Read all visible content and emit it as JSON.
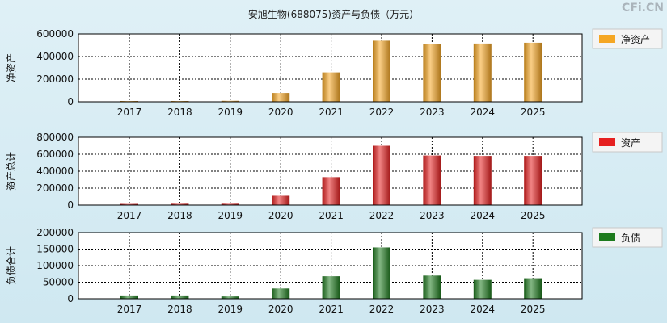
{
  "title": "安旭生物(688075)资产与负债（万元）",
  "watermark": "CFi.CN",
  "chart_data": [
    {
      "type": "bar",
      "ylabel": "净资产",
      "legend": "净资产",
      "color": "#f5a623",
      "categories": [
        "2017",
        "2018",
        "2019",
        "2020",
        "2021",
        "2022",
        "2023",
        "2024",
        "2025"
      ],
      "values": [
        4000,
        6000,
        9000,
        78000,
        260000,
        540000,
        510000,
        515000,
        522000
      ],
      "ylim": [
        0,
        600000
      ],
      "yticks": [
        0,
        200000,
        400000,
        600000
      ],
      "grid": true,
      "legend_position": "right"
    },
    {
      "type": "bar",
      "ylabel": "资产总计",
      "legend": "资产",
      "color": "#e62020",
      "categories": [
        "2017",
        "2018",
        "2019",
        "2020",
        "2021",
        "2022",
        "2023",
        "2024",
        "2025"
      ],
      "values": [
        14000,
        16000,
        16000,
        110000,
        330000,
        700000,
        585000,
        580000,
        580000
      ],
      "ylim": [
        0,
        800000
      ],
      "yticks": [
        0,
        200000,
        400000,
        600000,
        800000
      ],
      "grid": true,
      "legend_position": "right"
    },
    {
      "type": "bar",
      "ylabel": "负债合计",
      "legend": "负债",
      "color": "#1e7b1e",
      "categories": [
        "2017",
        "2018",
        "2019",
        "2020",
        "2021",
        "2022",
        "2023",
        "2024",
        "2025"
      ],
      "values": [
        10000,
        10000,
        7000,
        31000,
        68000,
        155000,
        70000,
        57000,
        62000
      ],
      "ylim": [
        0,
        200000
      ],
      "yticks": [
        0,
        50000,
        100000,
        150000,
        200000
      ],
      "grid": true,
      "legend_position": "right"
    }
  ]
}
